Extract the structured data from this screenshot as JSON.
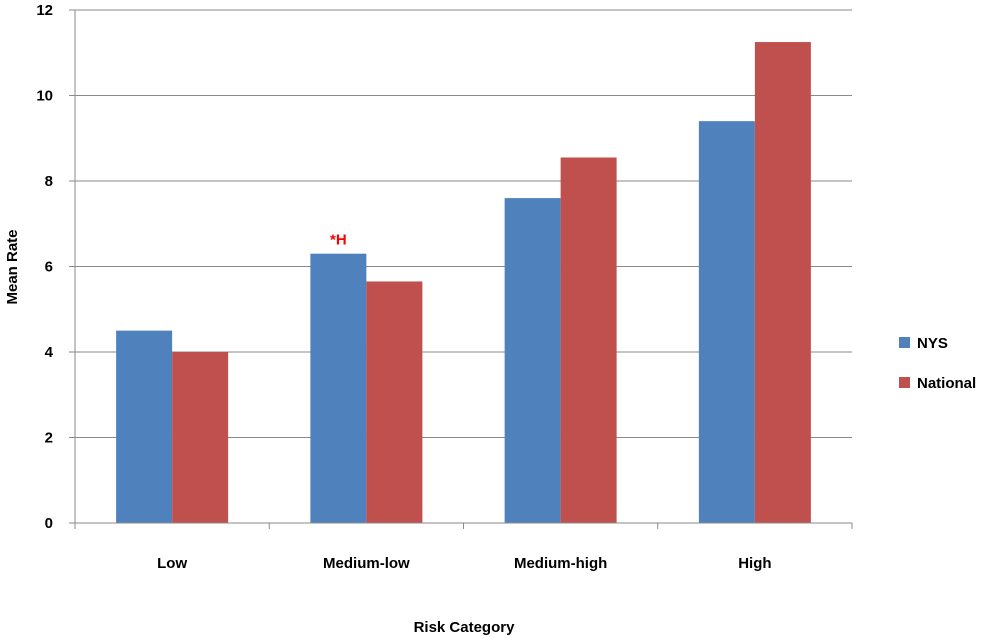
{
  "chart_data": {
    "type": "bar",
    "categories": [
      "Low",
      "Medium-low",
      "Medium-high",
      "High"
    ],
    "series": [
      {
        "name": "NYS",
        "color": "#4f81bd",
        "values": [
          4.5,
          6.3,
          7.6,
          9.4
        ]
      },
      {
        "name": "National",
        "color": "#c0504d",
        "values": [
          4.0,
          5.65,
          8.55,
          11.25
        ]
      }
    ],
    "xlabel": "Risk Category",
    "ylabel": "Mean Rate",
    "ylim": [
      0,
      12
    ],
    "yticks": [
      "0",
      "2",
      "4",
      "6",
      "8",
      "10",
      "12"
    ],
    "grid": true,
    "legend_position": "right",
    "annotations": [
      {
        "text": "*H",
        "category": "Medium-low",
        "series": "NYS",
        "color": "#ff0000"
      }
    ]
  }
}
